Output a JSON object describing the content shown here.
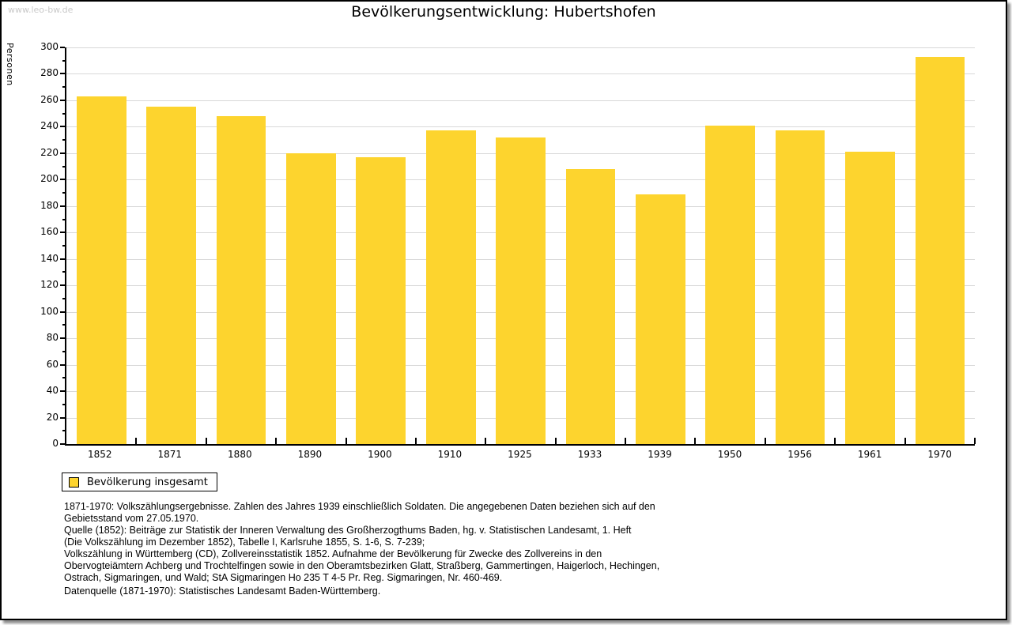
{
  "page": {
    "watermark": "www.leo-bw.de",
    "title": "Bevölkerungsentwicklung: Hubertshofen"
  },
  "chart_data": {
    "type": "bar",
    "title": "Bevölkerungsentwicklung: Hubertshofen",
    "xlabel": "",
    "ylabel": "Personen",
    "categories": [
      "1852",
      "1871",
      "1880",
      "1890",
      "1900",
      "1910",
      "1925",
      "1933",
      "1939",
      "1950",
      "1956",
      "1961",
      "1970"
    ],
    "values": [
      263,
      255,
      248,
      220,
      217,
      237,
      232,
      208,
      189,
      241,
      237,
      221,
      293
    ],
    "ylim": [
      0,
      300
    ],
    "ytick_step": 20,
    "yminor_step": 10,
    "grid": true,
    "bar_color": "#fdd42e",
    "gridline_color": "#d8d8d8",
    "legend_label": "Bevölkerung insgesamt",
    "legend_position": "bottom-left"
  },
  "footnotes": {
    "lines": [
      "1871-1970: Volkszählungsergebnisse. Zahlen des Jahres 1939 einschließlich Soldaten. Die angegebenen Daten beziehen sich auf den",
      "Gebietsstand vom 27.05.1970.",
      "Quelle (1852): Beiträge zur Statistik der Inneren Verwaltung des Großherzogthums Baden, hg. v. Statistischen Landesamt, 1. Heft",
      "(Die Volkszählung im Dezember 1852), Tabelle I, Karlsruhe 1855, S. 1-6, S. 7-239;",
      "Volkszählung in Württemberg (CD), Zollvereinsstatistik 1852. Aufnahme der Bevölkerung für Zwecke des Zollvereins in den",
      "Obervogteiämtern Achberg und Trochtelfingen sowie in den Oberamtsbezirken Glatt, Straßberg, Gammertingen, Haigerloch, Hechingen,",
      "Ostrach, Sigmaringen, und Wald; StA Sigmaringen Ho 235 T 4-5 Pr. Reg. Sigmaringen, Nr. 460-469."
    ],
    "datasource": "Datenquelle (1871-1970): Statistisches Landesamt Baden-Württemberg."
  }
}
